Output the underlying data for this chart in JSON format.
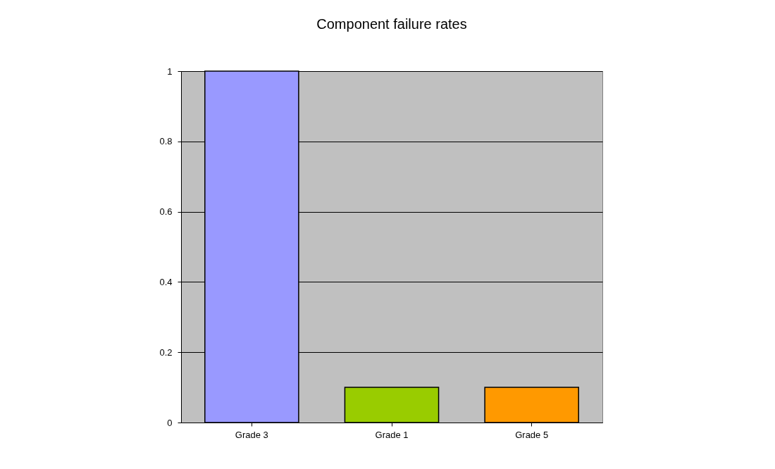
{
  "chart_data": {
    "type": "bar",
    "title": "Component failure rates",
    "categories": [
      "Grade 3",
      "Grade 1",
      "Grade 5"
    ],
    "values": [
      1,
      0.1,
      0.1
    ],
    "colors": [
      "#9999ff",
      "#99cc00",
      "#ff9900"
    ],
    "ylim": [
      0,
      1
    ],
    "yticks": [
      0,
      0.2,
      0.4,
      0.6,
      0.8,
      1
    ],
    "grid": "y",
    "legend": false
  }
}
